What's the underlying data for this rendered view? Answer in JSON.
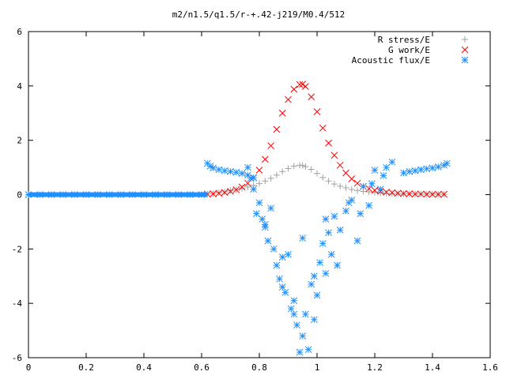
{
  "chart_data": {
    "type": "scatter",
    "title": "m2/n1.5/q1.5/r-+.42-j219/M0.4/512",
    "xlabel": "",
    "ylabel": "",
    "xlim": [
      0,
      1.6
    ],
    "ylim": [
      -6,
      6
    ],
    "x_ticks": [
      "0",
      "0.2",
      "0.4",
      "0.6",
      "0.8",
      "1",
      "1.2",
      "1.4",
      "1.6"
    ],
    "y_ticks": [
      "6",
      "4",
      "2",
      "0",
      "-2",
      "-4",
      "-6"
    ],
    "grid": false,
    "legend_position": "top-right",
    "series": [
      {
        "name": "R stress/E",
        "marker": "plus",
        "color": "#a0a0a0",
        "x": [
          0.62,
          0.64,
          0.66,
          0.68,
          0.7,
          0.72,
          0.74,
          0.76,
          0.78,
          0.8,
          0.82,
          0.84,
          0.86,
          0.88,
          0.9,
          0.92,
          0.94,
          0.95,
          0.96,
          0.98,
          1.0,
          1.02,
          1.04,
          1.06,
          1.08,
          1.1,
          1.12,
          1.14,
          1.16,
          1.18,
          1.2,
          1.22,
          1.24,
          1.26,
          1.28,
          1.3,
          1.32,
          1.34,
          1.36,
          1.38,
          1.4,
          1.42,
          1.44
        ],
        "y": [
          0.02,
          0.04,
          0.07,
          0.1,
          0.14,
          0.18,
          0.23,
          0.28,
          0.34,
          0.41,
          0.5,
          0.6,
          0.72,
          0.85,
          0.96,
          1.05,
          1.08,
          1.07,
          1.03,
          0.93,
          0.78,
          0.63,
          0.5,
          0.39,
          0.31,
          0.25,
          0.19,
          0.15,
          0.12,
          0.1,
          0.08,
          0.06,
          0.05,
          0.04,
          0.04,
          0.03,
          0.03,
          0.02,
          0.02,
          0.02,
          0.02,
          0.01,
          0.01
        ]
      },
      {
        "name": "G work/E",
        "marker": "cross",
        "color": "#ff0000",
        "x": [
          0.62,
          0.64,
          0.66,
          0.68,
          0.7,
          0.72,
          0.74,
          0.76,
          0.78,
          0.8,
          0.82,
          0.84,
          0.86,
          0.88,
          0.9,
          0.92,
          0.94,
          0.95,
          0.96,
          0.98,
          1.0,
          1.02,
          1.04,
          1.06,
          1.08,
          1.1,
          1.12,
          1.14,
          1.16,
          1.18,
          1.2,
          1.22,
          1.24,
          1.26,
          1.28,
          1.3,
          1.32,
          1.34,
          1.36,
          1.38,
          1.4,
          1.42,
          1.44
        ],
        "y": [
          0.02,
          0.03,
          0.05,
          0.08,
          0.12,
          0.18,
          0.28,
          0.42,
          0.62,
          0.9,
          1.3,
          1.8,
          2.4,
          3.0,
          3.5,
          3.88,
          4.05,
          4.06,
          3.98,
          3.6,
          3.05,
          2.45,
          1.9,
          1.45,
          1.08,
          0.8,
          0.58,
          0.42,
          0.3,
          0.22,
          0.16,
          0.12,
          0.09,
          0.07,
          0.05,
          0.04,
          0.03,
          0.02,
          0.02,
          0.01,
          0.01,
          0.01,
          0.01
        ]
      },
      {
        "name": "Acoustic flux/E",
        "marker": "star",
        "color": "#1e90ff",
        "x": [
          0.0,
          0.04,
          0.08,
          0.12,
          0.16,
          0.2,
          0.24,
          0.28,
          0.32,
          0.36,
          0.4,
          0.44,
          0.48,
          0.52,
          0.56,
          0.6,
          0.62,
          0.63,
          0.64,
          0.66,
          0.68,
          0.7,
          0.72,
          0.74,
          0.76,
          0.78,
          1.3,
          1.32,
          1.34,
          1.36,
          1.38,
          1.4,
          1.42,
          1.44,
          1.45,
          0.76,
          0.78,
          0.8,
          0.81,
          0.82,
          0.83,
          0.84,
          0.85,
          0.86,
          0.87,
          0.88,
          0.89,
          0.9,
          0.91,
          0.92,
          0.93,
          0.94,
          0.95,
          0.96,
          0.97,
          0.98,
          0.99,
          1.0,
          1.01,
          1.02,
          1.03,
          1.04,
          1.05,
          1.06,
          1.08,
          1.1,
          1.12,
          1.14,
          1.16,
          1.18,
          1.2,
          1.22,
          1.24,
          1.26,
          0.77,
          0.79,
          0.82,
          0.88,
          0.92,
          0.95,
          0.99,
          1.03,
          1.07,
          1.11,
          1.15,
          1.19,
          1.23
        ],
        "y": [
          0.0,
          0.0,
          0.0,
          0.0,
          0.0,
          0.0,
          0.0,
          0.0,
          0.0,
          0.0,
          0.0,
          0.0,
          0.0,
          0.0,
          0.0,
          0.0,
          1.15,
          1.05,
          0.98,
          0.92,
          0.88,
          0.85,
          0.82,
          0.78,
          0.72,
          0.62,
          0.8,
          0.85,
          0.88,
          0.92,
          0.95,
          0.98,
          1.02,
          1.08,
          1.15,
          1.0,
          0.2,
          -0.3,
          -0.9,
          -1.2,
          -1.7,
          -0.5,
          -2.0,
          -2.6,
          -3.1,
          -2.3,
          -3.6,
          -2.2,
          -4.2,
          -3.9,
          -4.8,
          -5.8,
          -5.2,
          -4.4,
          -5.7,
          -3.3,
          -4.6,
          -3.7,
          -2.5,
          -1.8,
          -2.9,
          -1.4,
          -2.2,
          -0.8,
          -1.3,
          -0.6,
          -0.2,
          -1.7,
          0.3,
          -0.4,
          0.9,
          0.2,
          1.0,
          1.2,
          0.6,
          -0.7,
          -1.1,
          -3.4,
          -4.4,
          -1.6,
          -3.0,
          -0.9,
          -2.6,
          -0.3,
          -0.7,
          0.4,
          0.7
        ]
      }
    ]
  }
}
